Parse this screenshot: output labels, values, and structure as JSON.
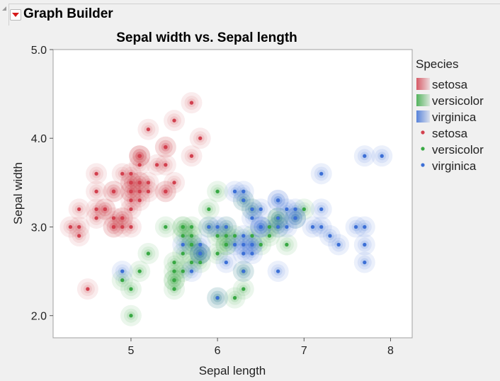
{
  "window": {
    "title": "Graph Builder"
  },
  "chart_data": {
    "type": "scatter",
    "title": "Sepal width vs. Sepal length",
    "xlabel": "Sepal length",
    "ylabel": "Sepal width",
    "xlim": [
      4.1,
      8.25
    ],
    "ylim": [
      1.75,
      5.0
    ],
    "x_ticks": [
      "5",
      "6",
      "7",
      "8"
    ],
    "y_ticks": [
      "2.0",
      "3.0",
      "4.0",
      "5.0"
    ],
    "grid": false,
    "contours": true,
    "legend": {
      "title": "Species",
      "placement": "right",
      "contour_entries": [
        "setosa",
        "versicolor",
        "virginica"
      ],
      "point_entries": [
        "setosa",
        "versicolor",
        "virginica"
      ]
    },
    "colors": {
      "setosa": "#d2404e",
      "versicolor": "#38a843",
      "virginica": "#3c6fd6"
    },
    "series": [
      {
        "name": "setosa",
        "points": [
          [
            5.1,
            3.5
          ],
          [
            4.9,
            3.0
          ],
          [
            4.7,
            3.2
          ],
          [
            4.6,
            3.1
          ],
          [
            5.0,
            3.6
          ],
          [
            5.4,
            3.9
          ],
          [
            4.6,
            3.4
          ],
          [
            5.0,
            3.4
          ],
          [
            4.4,
            2.9
          ],
          [
            4.9,
            3.1
          ],
          [
            5.4,
            3.7
          ],
          [
            4.8,
            3.4
          ],
          [
            4.8,
            3.0
          ],
          [
            4.3,
            3.0
          ],
          [
            5.8,
            4.0
          ],
          [
            5.7,
            4.4
          ],
          [
            5.4,
            3.9
          ],
          [
            5.1,
            3.5
          ],
          [
            5.7,
            3.8
          ],
          [
            5.1,
            3.8
          ],
          [
            5.4,
            3.4
          ],
          [
            5.1,
            3.7
          ],
          [
            4.6,
            3.6
          ],
          [
            5.1,
            3.3
          ],
          [
            4.8,
            3.4
          ],
          [
            5.0,
            3.0
          ],
          [
            5.0,
            3.4
          ],
          [
            5.2,
            3.5
          ],
          [
            5.2,
            3.4
          ],
          [
            4.7,
            3.2
          ],
          [
            4.8,
            3.1
          ],
          [
            5.4,
            3.4
          ],
          [
            5.2,
            4.1
          ],
          [
            5.5,
            4.2
          ],
          [
            4.9,
            3.1
          ],
          [
            5.0,
            3.2
          ],
          [
            5.5,
            3.5
          ],
          [
            4.9,
            3.6
          ],
          [
            4.4,
            3.0
          ],
          [
            5.1,
            3.4
          ],
          [
            5.0,
            3.5
          ],
          [
            4.5,
            2.3
          ],
          [
            4.4,
            3.2
          ],
          [
            5.0,
            3.5
          ],
          [
            5.1,
            3.8
          ],
          [
            4.8,
            3.0
          ],
          [
            5.1,
            3.8
          ],
          [
            4.6,
            3.2
          ],
          [
            5.3,
            3.7
          ],
          [
            5.0,
            3.3
          ]
        ]
      },
      {
        "name": "versicolor",
        "points": [
          [
            7.0,
            3.2
          ],
          [
            6.4,
            3.2
          ],
          [
            6.9,
            3.1
          ],
          [
            5.5,
            2.3
          ],
          [
            6.5,
            2.8
          ],
          [
            5.7,
            2.8
          ],
          [
            6.3,
            3.3
          ],
          [
            4.9,
            2.4
          ],
          [
            6.6,
            2.9
          ],
          [
            5.2,
            2.7
          ],
          [
            5.0,
            2.0
          ],
          [
            5.9,
            3.0
          ],
          [
            6.0,
            2.2
          ],
          [
            6.1,
            2.9
          ],
          [
            5.6,
            2.9
          ],
          [
            6.7,
            3.1
          ],
          [
            5.6,
            3.0
          ],
          [
            5.8,
            2.7
          ],
          [
            6.2,
            2.2
          ],
          [
            5.6,
            2.5
          ],
          [
            5.9,
            3.2
          ],
          [
            6.1,
            2.8
          ],
          [
            6.3,
            2.5
          ],
          [
            6.1,
            2.8
          ],
          [
            6.4,
            2.9
          ],
          [
            6.6,
            3.0
          ],
          [
            6.8,
            2.8
          ],
          [
            6.7,
            3.0
          ],
          [
            6.0,
            2.9
          ],
          [
            5.7,
            2.6
          ],
          [
            5.5,
            2.4
          ],
          [
            5.5,
            2.4
          ],
          [
            5.8,
            2.7
          ],
          [
            6.0,
            2.7
          ],
          [
            5.4,
            3.0
          ],
          [
            6.0,
            3.4
          ],
          [
            6.7,
            3.1
          ],
          [
            6.3,
            2.3
          ],
          [
            5.6,
            3.0
          ],
          [
            5.5,
            2.5
          ],
          [
            5.5,
            2.6
          ],
          [
            6.1,
            3.0
          ],
          [
            5.8,
            2.6
          ],
          [
            5.0,
            2.3
          ],
          [
            5.6,
            2.7
          ],
          [
            5.7,
            3.0
          ],
          [
            5.7,
            2.9
          ],
          [
            6.2,
            2.9
          ],
          [
            5.1,
            2.5
          ],
          [
            5.7,
            2.8
          ]
        ]
      },
      {
        "name": "virginica",
        "points": [
          [
            6.3,
            3.3
          ],
          [
            5.8,
            2.7
          ],
          [
            7.1,
            3.0
          ],
          [
            6.3,
            2.9
          ],
          [
            6.5,
            3.0
          ],
          [
            7.6,
            3.0
          ],
          [
            4.9,
            2.5
          ],
          [
            7.3,
            2.9
          ],
          [
            6.7,
            2.5
          ],
          [
            7.2,
            3.6
          ],
          [
            6.5,
            3.2
          ],
          [
            6.4,
            2.7
          ],
          [
            6.8,
            3.0
          ],
          [
            5.7,
            2.5
          ],
          [
            5.8,
            2.8
          ],
          [
            6.4,
            3.2
          ],
          [
            6.5,
            3.0
          ],
          [
            7.7,
            3.8
          ],
          [
            7.7,
            2.6
          ],
          [
            6.0,
            2.2
          ],
          [
            6.9,
            3.2
          ],
          [
            5.6,
            2.8
          ],
          [
            7.7,
            2.8
          ],
          [
            6.3,
            2.7
          ],
          [
            6.7,
            3.3
          ],
          [
            7.2,
            3.2
          ],
          [
            6.2,
            2.8
          ],
          [
            6.1,
            3.0
          ],
          [
            6.4,
            2.8
          ],
          [
            7.2,
            3.0
          ],
          [
            7.4,
            2.8
          ],
          [
            7.9,
            3.8
          ],
          [
            6.4,
            2.8
          ],
          [
            6.3,
            2.8
          ],
          [
            6.1,
            2.6
          ],
          [
            7.7,
            3.0
          ],
          [
            6.3,
            3.4
          ],
          [
            6.4,
            3.1
          ],
          [
            6.0,
            3.0
          ],
          [
            6.9,
            3.1
          ],
          [
            6.7,
            3.1
          ],
          [
            6.9,
            3.1
          ],
          [
            5.8,
            2.7
          ],
          [
            6.8,
            3.2
          ],
          [
            6.7,
            3.3
          ],
          [
            6.7,
            3.0
          ],
          [
            6.3,
            2.5
          ],
          [
            6.5,
            3.0
          ],
          [
            6.2,
            3.4
          ],
          [
            5.9,
            3.0
          ]
        ]
      }
    ]
  }
}
